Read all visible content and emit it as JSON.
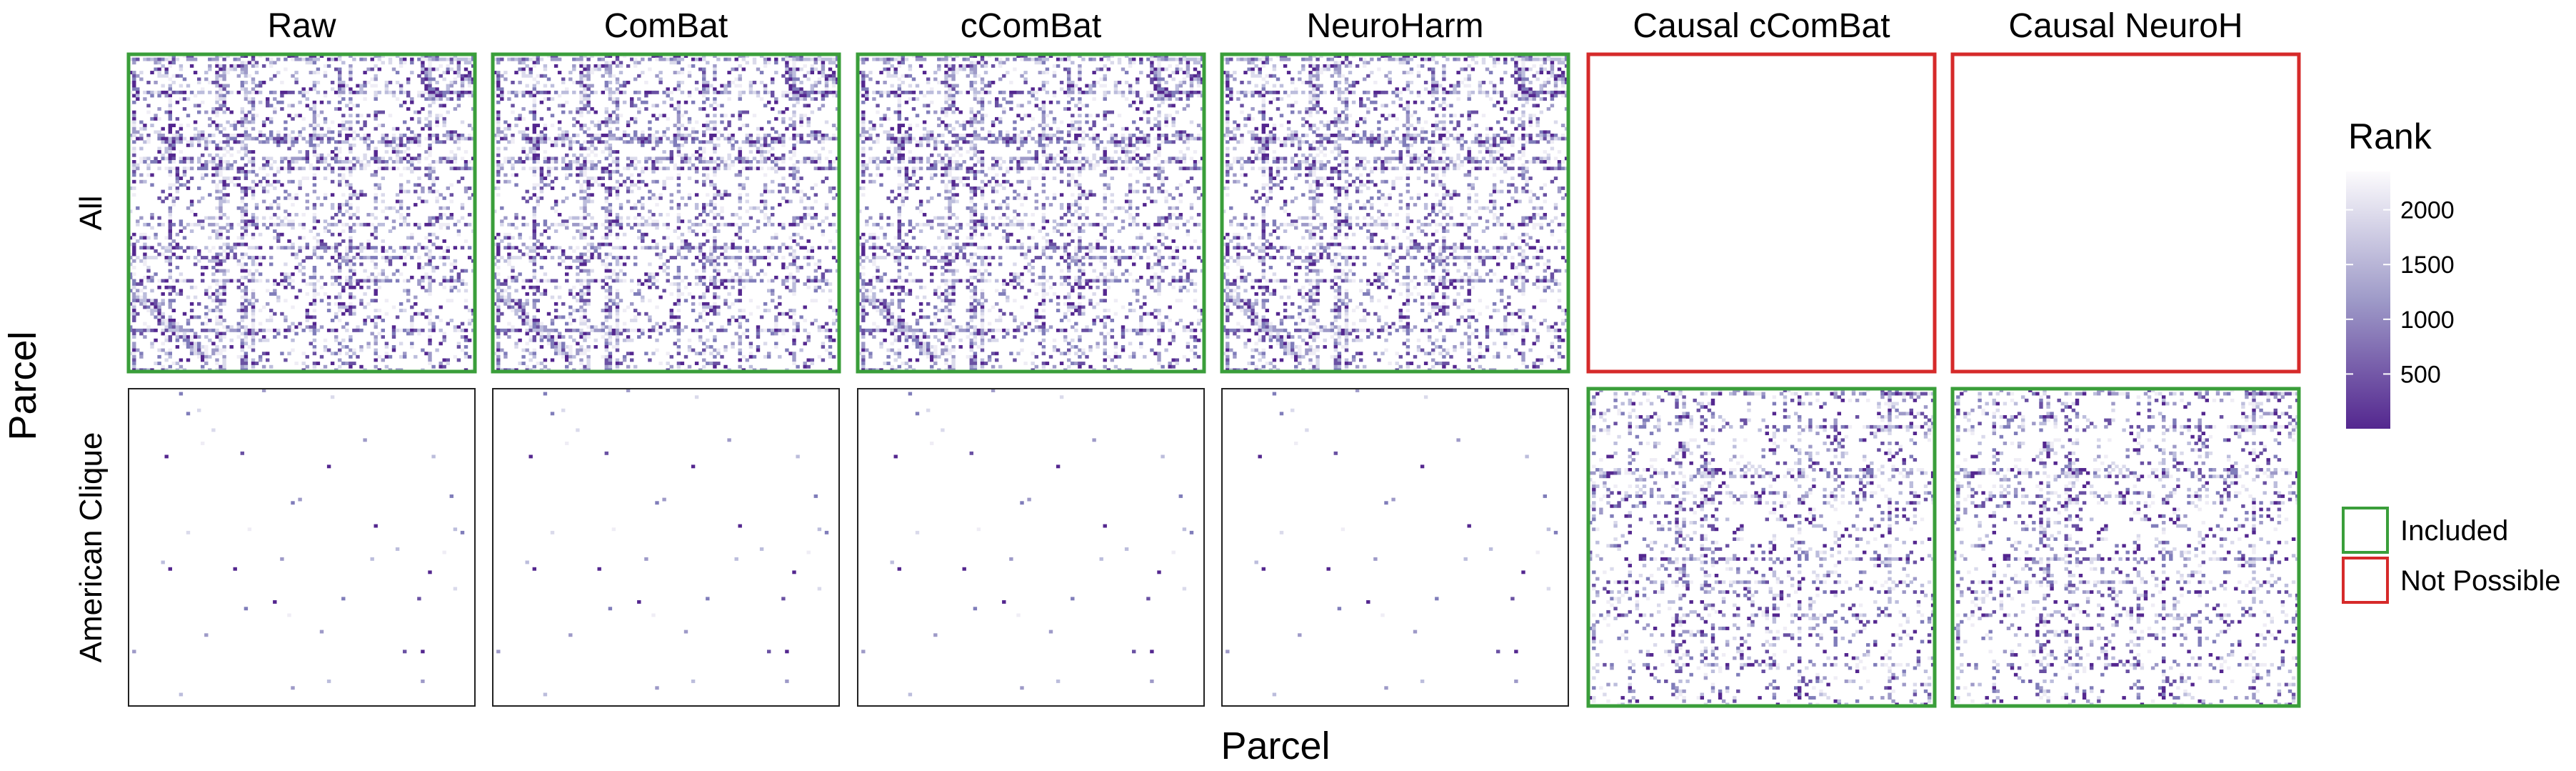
{
  "chart_data": {
    "type": "heatmap",
    "description_in_image": "facet grid of parcel-by-parcel rank heatmaps",
    "x_title": "Parcel",
    "y_title": "Parcel",
    "columns": [
      "Raw",
      "ComBat",
      "cComBat",
      "NeuroHarm",
      "Causal cComBat",
      "Causal NeuroH"
    ],
    "rows": [
      "All",
      "American Clique"
    ],
    "panels": [
      {
        "row": "All",
        "column": "Raw",
        "status": "Included",
        "pattern": "dense"
      },
      {
        "row": "All",
        "column": "ComBat",
        "status": "Included",
        "pattern": "dense"
      },
      {
        "row": "All",
        "column": "cComBat",
        "status": "Included",
        "pattern": "dense"
      },
      {
        "row": "All",
        "column": "NeuroHarm",
        "status": "Included",
        "pattern": "dense"
      },
      {
        "row": "All",
        "column": "Causal cComBat",
        "status": "Not Possible",
        "pattern": "empty"
      },
      {
        "row": "All",
        "column": "Causal NeuroH",
        "status": "Not Possible",
        "pattern": "empty"
      },
      {
        "row": "American Clique",
        "column": "Raw",
        "status": "none",
        "pattern": "sparse"
      },
      {
        "row": "American Clique",
        "column": "ComBat",
        "status": "none",
        "pattern": "sparse"
      },
      {
        "row": "American Clique",
        "column": "cComBat",
        "status": "none",
        "pattern": "sparse"
      },
      {
        "row": "American Clique",
        "column": "NeuroHarm",
        "status": "none",
        "pattern": "sparse"
      },
      {
        "row": "American Clique",
        "column": "Causal cComBat",
        "status": "Included",
        "pattern": "medium"
      },
      {
        "row": "American Clique",
        "column": "Causal NeuroH",
        "status": "Included",
        "pattern": "medium"
      }
    ],
    "colorbar": {
      "title": "Rank",
      "ticks": [
        500,
        1000,
        1500,
        2000
      ],
      "range": [
        0,
        2350
      ],
      "color_low": "#54278f",
      "color_high": "#fcfbfd"
    },
    "status_legend": [
      {
        "label": "Included",
        "color": "#3a9e3a"
      },
      {
        "label": "Not Possible",
        "color": "#d62a2a"
      }
    ]
  }
}
